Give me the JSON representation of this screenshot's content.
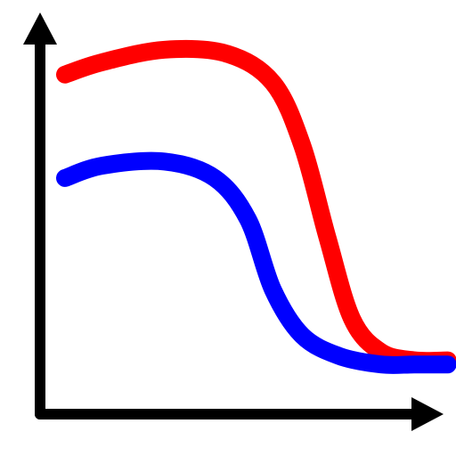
{
  "chart_data": {
    "type": "line",
    "title": "",
    "xlabel": "",
    "ylabel": "",
    "xlim": [
      0,
      10
    ],
    "ylim": [
      0,
      10
    ],
    "grid": false,
    "legend": "none",
    "axis_color": "#000000",
    "series": [
      {
        "color": "#ff0000",
        "points": [
          [
            0.6,
            8.2
          ],
          [
            1.5,
            8.5
          ],
          [
            3.0,
            8.8
          ],
          [
            4.5,
            8.7
          ],
          [
            5.6,
            8.0
          ],
          [
            6.3,
            6.5
          ],
          [
            6.9,
            4.3
          ],
          [
            7.5,
            2.3
          ],
          [
            8.2,
            1.5
          ],
          [
            9.0,
            1.3
          ],
          [
            9.8,
            1.3
          ]
        ]
      },
      {
        "color": "#0000ff",
        "points": [
          [
            0.6,
            5.7
          ],
          [
            1.5,
            6.0
          ],
          [
            3.0,
            6.1
          ],
          [
            4.2,
            5.7
          ],
          [
            5.0,
            4.7
          ],
          [
            5.6,
            3.0
          ],
          [
            6.3,
            1.9
          ],
          [
            7.2,
            1.4
          ],
          [
            8.2,
            1.2
          ],
          [
            9.0,
            1.2
          ],
          [
            9.8,
            1.2
          ]
        ]
      }
    ]
  }
}
